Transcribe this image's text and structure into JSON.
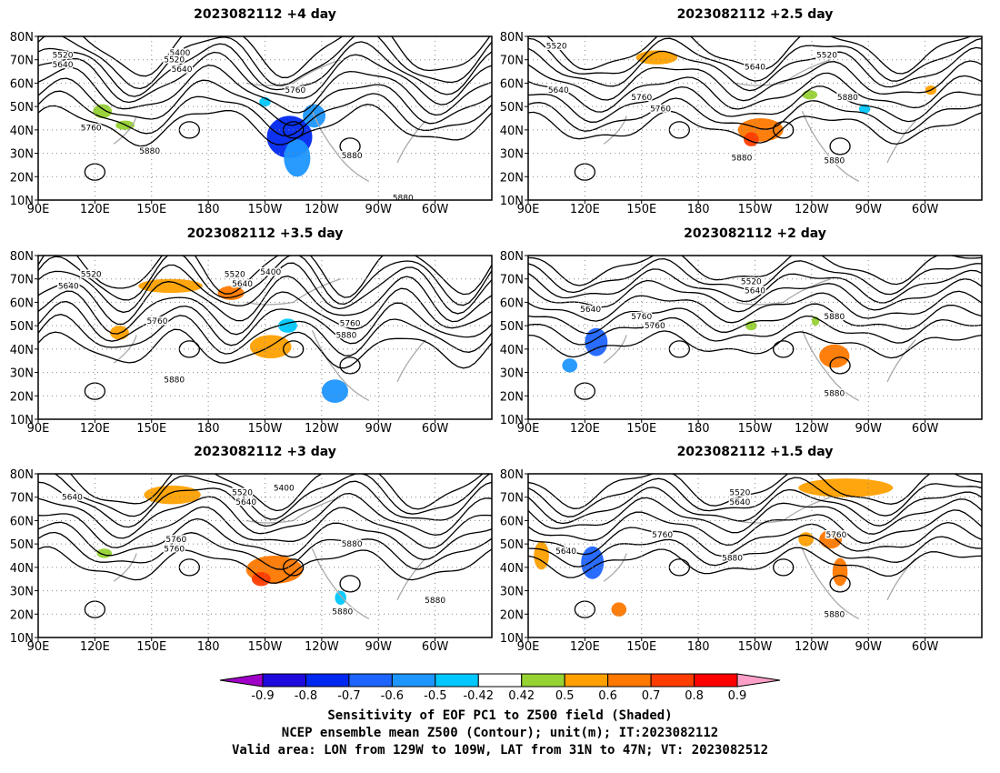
{
  "panels": [
    {
      "title": "2023082112 +4 day",
      "contour_labels": [
        "5520",
        "5400",
        "5640",
        "5520",
        "5640",
        "5760",
        "5760",
        "5880",
        "5880",
        "5880"
      ],
      "shading": [
        {
          "lon": 223,
          "lat": 37,
          "rx": 12,
          "ry": 9,
          "value": -0.75
        },
        {
          "lon": 227,
          "lat": 28,
          "rx": 7,
          "ry": 8,
          "value": -0.6
        },
        {
          "lon": 236,
          "lat": 46,
          "rx": 6,
          "ry": 5,
          "value": -0.55
        },
        {
          "lon": 124,
          "lat": 48,
          "rx": 5,
          "ry": 3,
          "value": 0.45
        },
        {
          "lon": 136,
          "lat": 42,
          "rx": 5,
          "ry": 2,
          "value": 0.45
        },
        {
          "lon": 210,
          "lat": 52,
          "rx": 3,
          "ry": 2,
          "value": -0.5
        }
      ]
    },
    {
      "title": "2023082112 +2.5 day",
      "contour_labels": [
        "5520",
        "5520",
        "5640",
        "5640",
        "5760",
        "5880",
        "5760",
        "5880",
        "5880"
      ],
      "shading": [
        {
          "lon": 158,
          "lat": 71,
          "rx": 11,
          "ry": 3,
          "value": 0.55
        },
        {
          "lon": 213,
          "lat": 40,
          "rx": 12,
          "ry": 5,
          "value": 0.6
        },
        {
          "lon": 208,
          "lat": 36,
          "rx": 4,
          "ry": 3,
          "value": 0.7
        },
        {
          "lon": 239,
          "lat": 55,
          "rx": 4,
          "ry": 2,
          "value": 0.45
        },
        {
          "lon": 268,
          "lat": 49,
          "rx": 3,
          "ry": 2,
          "value": -0.5
        },
        {
          "lon": 303,
          "lat": 57,
          "rx": 3,
          "ry": 2,
          "value": 0.5
        }
      ]
    },
    {
      "title": "2023082112 +3.5 day",
      "contour_labels": [
        "5520",
        "5640",
        "5520",
        "5400",
        "5640",
        "5760",
        "5760",
        "5880",
        "5880"
      ],
      "shading": [
        {
          "lon": 160,
          "lat": 67,
          "rx": 17,
          "ry": 3,
          "value": 0.55
        },
        {
          "lon": 192,
          "lat": 64,
          "rx": 7,
          "ry": 3,
          "value": 0.65
        },
        {
          "lon": 213,
          "lat": 41,
          "rx": 11,
          "ry": 5,
          "value": 0.5
        },
        {
          "lon": 222,
          "lat": 50,
          "rx": 5,
          "ry": 3,
          "value": -0.5
        },
        {
          "lon": 247,
          "lat": 22,
          "rx": 7,
          "ry": 5,
          "value": -0.6
        },
        {
          "lon": 133,
          "lat": 47,
          "rx": 5,
          "ry": 3,
          "value": 0.55
        }
      ]
    },
    {
      "title": "2023082112 +2 day",
      "contour_labels": [
        "5520",
        "5640",
        "5640",
        "5760",
        "5880",
        "5760",
        "5880"
      ],
      "shading": [
        {
          "lon": 126,
          "lat": 43,
          "rx": 6,
          "ry": 6,
          "value": -0.7
        },
        {
          "lon": 112,
          "lat": 33,
          "rx": 4,
          "ry": 3,
          "value": -0.55
        },
        {
          "lon": 252,
          "lat": 37,
          "rx": 8,
          "ry": 5,
          "value": 0.6
        },
        {
          "lon": 208,
          "lat": 50,
          "rx": 3,
          "ry": 2,
          "value": 0.45
        },
        {
          "lon": 242,
          "lat": 52,
          "rx": 2,
          "ry": 2,
          "value": 0.45
        }
      ]
    },
    {
      "title": "2023082112 +3 day",
      "contour_labels": [
        "5640",
        "5520",
        "5400",
        "5640",
        "5760",
        "5880",
        "5760",
        "5880",
        "5880"
      ],
      "shading": [
        {
          "lon": 161,
          "lat": 71,
          "rx": 15,
          "ry": 4,
          "value": 0.55
        },
        {
          "lon": 215,
          "lat": 39,
          "rx": 15,
          "ry": 6,
          "value": 0.6
        },
        {
          "lon": 208,
          "lat": 35,
          "rx": 5,
          "ry": 3,
          "value": 0.7
        },
        {
          "lon": 250,
          "lat": 27,
          "rx": 3,
          "ry": 3,
          "value": -0.5
        },
        {
          "lon": 125,
          "lat": 46,
          "rx": 4,
          "ry": 2,
          "value": 0.45
        }
      ]
    },
    {
      "title": "2023082112 +1.5 day",
      "contour_labels": [
        "5520",
        "5640",
        "5640",
        "5760",
        "5760",
        "5880",
        "5880"
      ],
      "shading": [
        {
          "lon": 124,
          "lat": 42,
          "rx": 6,
          "ry": 7,
          "value": -0.7
        },
        {
          "lon": 97,
          "lat": 45,
          "rx": 4,
          "ry": 6,
          "value": 0.5
        },
        {
          "lon": 258,
          "lat": 74,
          "rx": 25,
          "ry": 4,
          "value": 0.55
        },
        {
          "lon": 250,
          "lat": 52,
          "rx": 6,
          "ry": 4,
          "value": 0.6
        },
        {
          "lon": 255,
          "lat": 38,
          "rx": 4,
          "ry": 6,
          "value": 0.6
        },
        {
          "lon": 138,
          "lat": 22,
          "rx": 4,
          "ry": 3,
          "value": 0.6
        },
        {
          "lon": 237,
          "lat": 52,
          "rx": 4,
          "ry": 3,
          "value": 0.5
        }
      ]
    }
  ],
  "axes": {
    "lon_min": 90,
    "lon_max": 330,
    "lat_min": 10,
    "lat_max": 80,
    "x_ticks": [
      "90E",
      "120E",
      "150E",
      "180",
      "150W",
      "120W",
      "90W",
      "60W"
    ],
    "x_tick_values": [
      90,
      120,
      150,
      180,
      210,
      240,
      270,
      300
    ],
    "y_ticks": [
      "10N",
      "20N",
      "30N",
      "40N",
      "50N",
      "60N",
      "70N",
      "80N"
    ],
    "y_tick_values": [
      10,
      20,
      30,
      40,
      50,
      60,
      70,
      80
    ]
  },
  "colorbar": {
    "levels": [
      "-0.9",
      "-0.8",
      "-0.7",
      "-0.6",
      "-0.5",
      "-0.42",
      "0.42",
      "0.5",
      "0.6",
      "0.7",
      "0.8",
      "0.9"
    ],
    "colors": [
      "#a000c8",
      "#1e0adc",
      "#0028f0",
      "#1e64ff",
      "#1e96ff",
      "#00c8ff",
      "#ffffff",
      "#96d232",
      "#ffa000",
      "#ff7800",
      "#ff3c00",
      "#ff0000",
      "#ffa0c8"
    ]
  },
  "caption": [
    "Sensitivity of EOF PC1 to Z500 field (Shaded)",
    "NCEP ensemble mean Z500 (Contour); unit(m); IT:2023082112",
    "Valid area: LON from 129W to 109W, LAT from 31N to 47N; VT: 2023082512"
  ]
}
